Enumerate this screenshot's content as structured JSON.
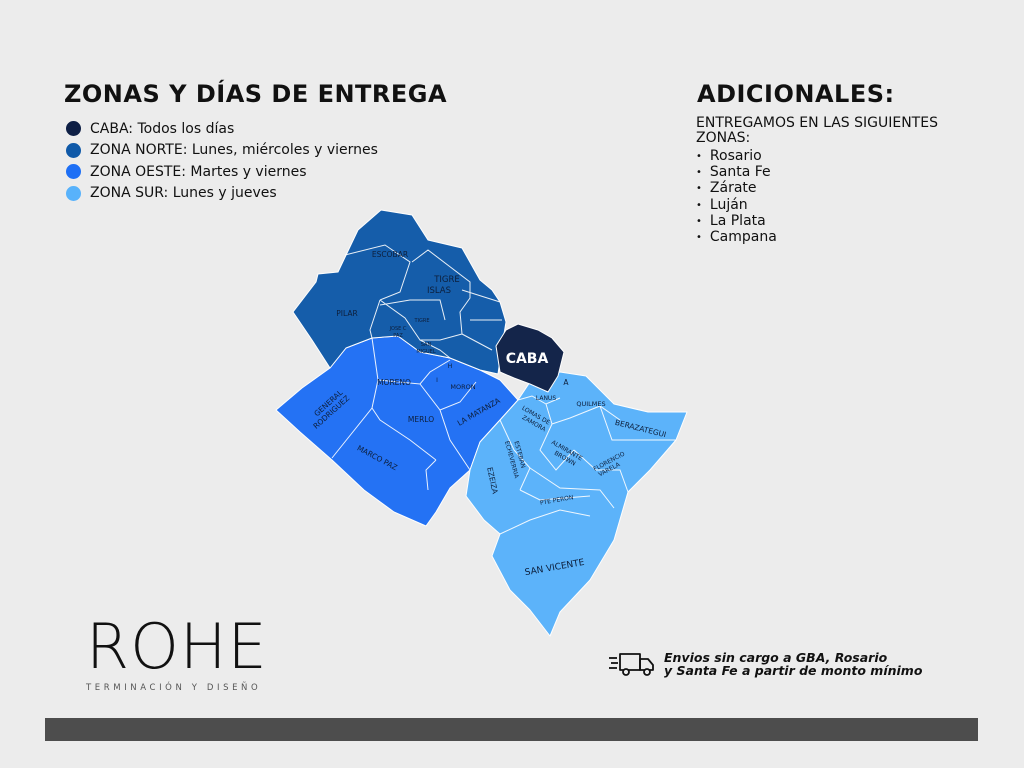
{
  "title": "ZONAS Y DÍAS DE ENTREGA",
  "legend": [
    {
      "label": "CABA: Todos los días",
      "color": "#0e1f45"
    },
    {
      "label": "ZONA NORTE: Lunes, miércoles y viernes",
      "color": "#0f59a8"
    },
    {
      "label": "ZONA OESTE: Martes y viernes",
      "color": "#1e6ff5"
    },
    {
      "label": "ZONA SUR: Lunes y jueves",
      "color": "#58b2fb"
    }
  ],
  "additional": {
    "title": "ADICIONALES:",
    "subtitle_line1": "ENTREGAMOS EN LAS SIGUIENTES",
    "subtitle_line2": "ZONAS:",
    "zones": [
      "Rosario",
      "Santa Fe",
      "Zárate",
      "Luján",
      "La Plata",
      "Campana"
    ]
  },
  "map_labels": {
    "escobar": "ESCOBAR",
    "tigre_1": "TIGRE",
    "tigre_2": "ISLAS",
    "pilar": "PILAR",
    "tigre_small": "TIGRE",
    "jose_c_paz_1": "JOSE C",
    "jose_c_paz_2": "PAZ",
    "san_miguel_1": "SAN",
    "san_miguel_2": "MIGUEL",
    "caba": "CABA",
    "moreno": "MORENO",
    "hurlingham": "H",
    "ituzaingo": "I",
    "moron": "MORON",
    "general_rodriguez_1": "GENERAL",
    "general_rodriguez_2": "RODRIGUEZ",
    "merlo": "MERLO",
    "la_matanza": "LA MATANZA",
    "marcos_paz": "MARCO PAZ",
    "avellaneda": "A",
    "lanus": "LANUS",
    "lomas_1": "LOMAS DE",
    "lomas_2": "ZAMORA",
    "quilmes": "QUILMES",
    "berazategui": "BERAZATEGUI",
    "echeverria_1": "ESTEBAN",
    "echeverria_2": "ECHEVERRIA",
    "brown_1": "ALMIRANTE",
    "brown_2": "BROWN",
    "varela_1": "FLORENCIO",
    "varela_2": "VARELA",
    "ezeiza": "EZEIZA",
    "pte_peron": "PTE PERON",
    "san_vicente": "SAN VICENTE"
  },
  "logo": {
    "word": "ROHE",
    "tagline": "TERMINACIÓN Y DISEÑO"
  },
  "shipping": {
    "line1": "Envios sin cargo a GBA, Rosario",
    "line2": "y Santa Fe a partir de monto mínimo"
  },
  "colors": {
    "caba": "#0e1f45",
    "norte": "#0f59a8",
    "oeste": "#1e6ff5",
    "sur": "#58b2fb",
    "background": "#ececec",
    "footer_bar": "#4d4d4d"
  }
}
